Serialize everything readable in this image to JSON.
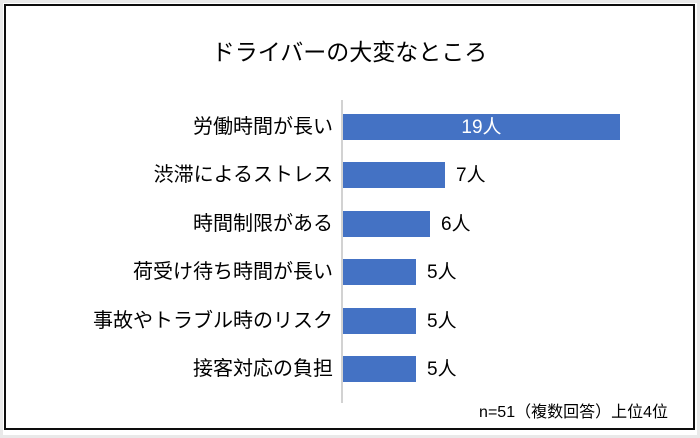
{
  "chart": {
    "frame_border_color": "#0d0d0d",
    "background_color": "#ffffff"
  },
  "chart_data": {
    "type": "bar",
    "orientation": "horizontal",
    "title": "ドライバーの大変なところ",
    "categories": [
      "労働時間が長い",
      "渋滞によるストレス",
      "時間制限がある",
      "荷受け待ち時間が長い",
      "事故やトラブル時のリスク",
      "接客対応の負担"
    ],
    "values": [
      19,
      7,
      6,
      5,
      5,
      5
    ],
    "value_labels": [
      "19人",
      "7人",
      "6人",
      "5人",
      "5人",
      "5人"
    ],
    "value_label_positions": [
      "inside",
      "outside",
      "outside",
      "outside",
      "outside",
      "outside"
    ],
    "unit": "人",
    "xlim": [
      0,
      19
    ],
    "grid": false,
    "legend": false,
    "bar_color": "#4472C4",
    "axis_line_color": "#d2d2d2",
    "note": "n=51（複数回答）上位4位"
  }
}
